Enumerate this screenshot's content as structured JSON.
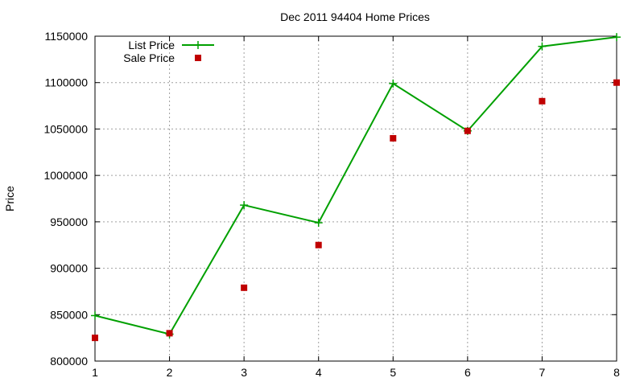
{
  "chart_data": {
    "type": "line",
    "title": "Dec 2011 94404 Home Prices",
    "xlabel": "",
    "ylabel": "Price",
    "x": [
      1,
      2,
      3,
      4,
      5,
      6,
      7,
      8
    ],
    "xlim": [
      1,
      8
    ],
    "ylim": [
      800000,
      1150000
    ],
    "yticks": [
      800000,
      850000,
      900000,
      950000,
      1000000,
      1050000,
      1100000,
      1150000
    ],
    "grid": true,
    "legend_position": "top-left",
    "series": [
      {
        "name": "List Price",
        "style": "lines+points",
        "marker": "plus",
        "color": "#00a000",
        "values": [
          849000,
          829000,
          968000,
          949000,
          1099000,
          1048000,
          1139000,
          1149000
        ]
      },
      {
        "name": "Sale Price",
        "style": "points",
        "marker": "square",
        "color": "#c00000",
        "values": [
          825000,
          830000,
          879000,
          925000,
          1040000,
          1048000,
          1080000,
          1100000
        ]
      }
    ]
  }
}
